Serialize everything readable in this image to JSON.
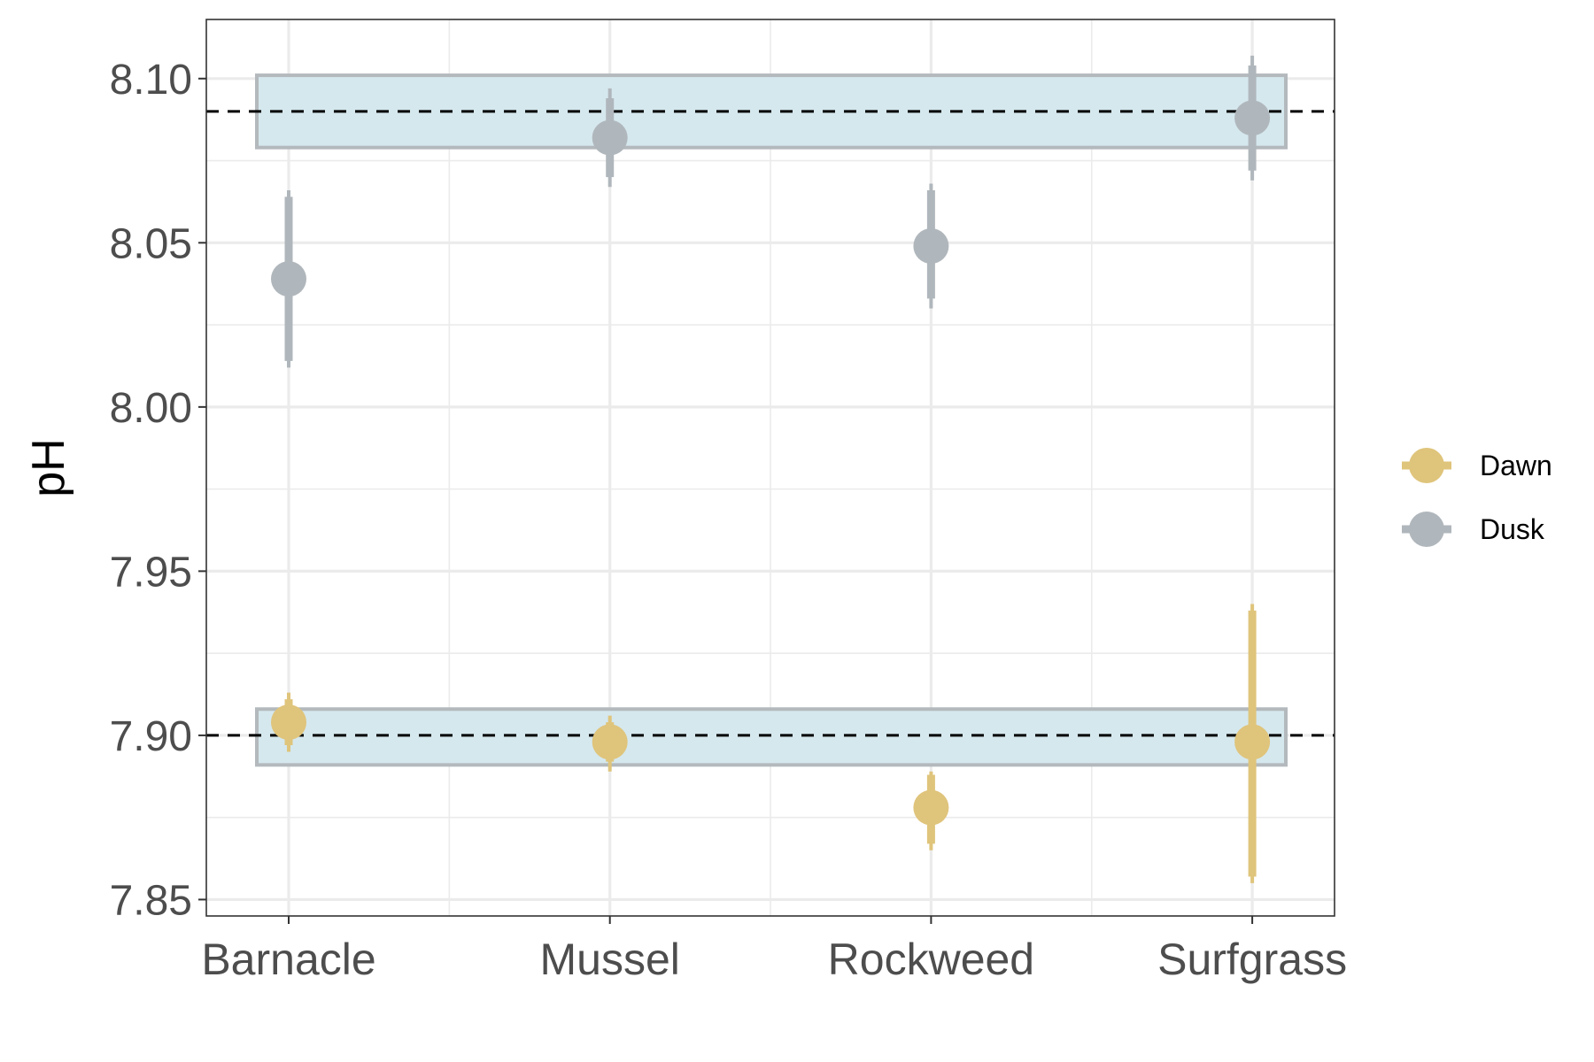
{
  "chart_data": {
    "type": "scatter",
    "title": "",
    "xlabel": "",
    "ylabel": "pH",
    "categories": [
      "Barnacle",
      "Mussel",
      "Rockweed",
      "Surfgrass"
    ],
    "ylim": [
      7.845,
      8.118
    ],
    "yticks": [
      "7.85",
      "7.90",
      "7.95",
      "8.00",
      "8.05",
      "8.10"
    ],
    "grid": true,
    "legend_position": "right",
    "reference_lines": [
      8.09,
      7.9
    ],
    "bands": [
      {
        "name": "dusk-band",
        "ymin": 8.079,
        "ymax": 8.101
      },
      {
        "name": "dawn-band",
        "ymin": 7.891,
        "ymax": 7.908
      }
    ],
    "series": [
      {
        "name": "Dawn",
        "color": "#dfc47b",
        "values": [
          7.904,
          7.898,
          7.878,
          7.898
        ],
        "thick_low": [
          7.897,
          7.892,
          7.867,
          7.857
        ],
        "thick_high": [
          7.911,
          7.904,
          7.888,
          7.938
        ],
        "thin_low": [
          7.895,
          7.889,
          7.865,
          7.855
        ],
        "thin_high": [
          7.913,
          7.906,
          7.889,
          7.94
        ]
      },
      {
        "name": "Dusk",
        "color": "#b0b7bc",
        "values": [
          8.039,
          8.082,
          8.049,
          8.088
        ],
        "thick_low": [
          8.014,
          8.07,
          8.033,
          8.072
        ],
        "thick_high": [
          8.064,
          8.094,
          8.066,
          8.104
        ],
        "thin_low": [
          8.012,
          8.067,
          8.03,
          8.069
        ],
        "thin_high": [
          8.066,
          8.097,
          8.068,
          8.107
        ]
      }
    ],
    "colors": {
      "band_fill": "#d5e8ee",
      "band_stroke": "#b3b9bc",
      "grid": "#ebebeb",
      "panel_border": "#333333",
      "ref_line": "#000000"
    }
  }
}
